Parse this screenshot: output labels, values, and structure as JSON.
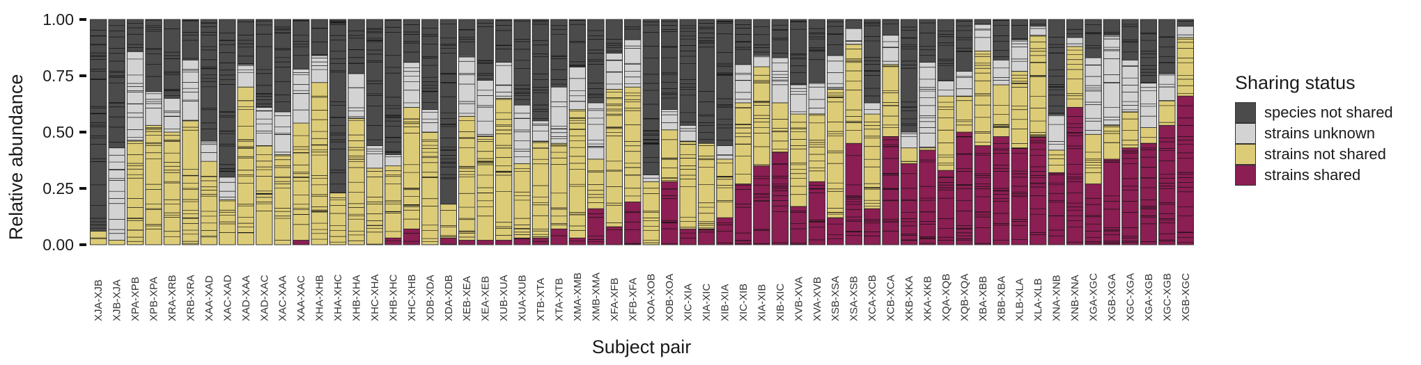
{
  "chart_data": {
    "type": "bar",
    "stacked": true,
    "xlabel": "Subject pair",
    "ylabel": "Relative abundance",
    "ylim": [
      0,
      1
    ],
    "yticks": [
      "0.00",
      "0.25",
      "0.50",
      "0.75",
      "1.00"
    ],
    "categories": [
      "XJA-XJB",
      "XJB-XJA",
      "XPA-XPB",
      "XPB-XPA",
      "XRA-XRB",
      "XRB-XRA",
      "XAA-XAD",
      "XAC-XAD",
      "XAD-XAA",
      "XAD-XAC",
      "XAC-XAA",
      "XAA-XAC",
      "XHA-XHB",
      "XHA-XHC",
      "XHB-XHA",
      "XHC-XHA",
      "XHB-XHC",
      "XHC-XHB",
      "XDB-XDA",
      "XDA-XDB",
      "XEB-XEA",
      "XEA-XEB",
      "XUB-XUA",
      "XUA-XUB",
      "XTB-XTA",
      "XTA-XTB",
      "XMA-XMB",
      "XMB-XMA",
      "XFA-XFB",
      "XFB-XFA",
      "XOA-XOB",
      "XOB-XOA",
      "XIC-XIA",
      "XIA-XIC",
      "XIB-XIA",
      "XIC-XIB",
      "XIA-XIB",
      "XIB-XIC",
      "XVB-XVA",
      "XVA-XVB",
      "XSB-XSA",
      "XSA-XSB",
      "XCA-XCB",
      "XCB-XCA",
      "XKB-XKA",
      "XKA-XKB",
      "XQA-XQB",
      "XQB-XQA",
      "XBA-XBB",
      "XBB-XBA",
      "XLB-XLA",
      "XLA-XLB",
      "XNA-XNB",
      "XNB-XNA",
      "XGA-XGC",
      "XGB-XGA",
      "XGC-XGA",
      "XGA-XGB",
      "XGC-XGB",
      "XGB-XGC"
    ],
    "series": [
      {
        "name": "strains shared",
        "color": "#8b1e52",
        "values": [
          0,
          0,
          0,
          0,
          0,
          0,
          0,
          0,
          0,
          0,
          0,
          0.02,
          0,
          0,
          0,
          0,
          0.03,
          0.07,
          0,
          0.03,
          0.02,
          0.02,
          0.02,
          0.03,
          0.03,
          0.07,
          0.03,
          0.16,
          0.08,
          0.19,
          0,
          0.28,
          0.07,
          0.07,
          0.12,
          0.27,
          0.35,
          0.41,
          0.17,
          0.28,
          0.12,
          0.45,
          0.16,
          0.48,
          0.36,
          0.42,
          0.33,
          0.5,
          0.44,
          0.48,
          0.43,
          0.48,
          0.32,
          0.61,
          0.27,
          0.38,
          0.43,
          0.45,
          0.53,
          0.66
        ]
      },
      {
        "name": "strains not shared",
        "color": "#ddcc77",
        "values": [
          0.06,
          0.02,
          0.46,
          0.53,
          0.5,
          0.55,
          0.37,
          0.2,
          0.7,
          0.44,
          0.4,
          0.52,
          0.72,
          0.23,
          0.56,
          0.34,
          0.32,
          0.54,
          0.5,
          0.15,
          0.55,
          0.46,
          0.63,
          0.33,
          0.43,
          0.38,
          0.57,
          0.22,
          0.61,
          0.51,
          0.28,
          0.23,
          0.39,
          0.38,
          0.26,
          0.36,
          0.44,
          0.22,
          0.41,
          0.3,
          0.57,
          0.44,
          0.42,
          0.32,
          0.07,
          0.01,
          0.33,
          0.16,
          0.42,
          0.23,
          0.34,
          0.45,
          0.1,
          0.27,
          0.22,
          0.15,
          0.16,
          0.07,
          0.11,
          0.26
        ]
      },
      {
        "name": "strains unknown",
        "color": "#d3d3d3",
        "values": [
          0,
          0.41,
          0.4,
          0.15,
          0.15,
          0.27,
          0.09,
          0.1,
          0.1,
          0.17,
          0.19,
          0.24,
          0.12,
          0,
          0.2,
          0.1,
          0.05,
          0.2,
          0.1,
          0,
          0.27,
          0.25,
          0.16,
          0.26,
          0.09,
          0.25,
          0.19,
          0.25,
          0.16,
          0.21,
          0.03,
          0.09,
          0.07,
          0,
          0.06,
          0.17,
          0.05,
          0.2,
          0.13,
          0.14,
          0.15,
          0.07,
          0.05,
          0.13,
          0.07,
          0.38,
          0.07,
          0.11,
          0.12,
          0.11,
          0.14,
          0.04,
          0.16,
          0.04,
          0.34,
          0.4,
          0.23,
          0.2,
          0.12,
          0.05
        ]
      },
      {
        "name": "species not shared",
        "color": "#4b4b4b",
        "values": [
          0.94,
          0.57,
          0.14,
          0.32,
          0.35,
          0.18,
          0.54,
          0.7,
          0.2,
          0.39,
          0.41,
          0.22,
          0.16,
          0.77,
          0.24,
          0.56,
          0.6,
          0.19,
          0.4,
          0.82,
          0.16,
          0.27,
          0.19,
          0.38,
          0.45,
          0.3,
          0.21,
          0.37,
          0.15,
          0.09,
          0.69,
          0.4,
          0.47,
          0.55,
          0.56,
          0.2,
          0.16,
          0.17,
          0.29,
          0.28,
          0.16,
          0.04,
          0.37,
          0.07,
          0.5,
          0.19,
          0.27,
          0.23,
          0.02,
          0.18,
          0.09,
          0.03,
          0.42,
          0.08,
          0.17,
          0.07,
          0.18,
          0.28,
          0.24,
          0.03
        ]
      }
    ],
    "legend": {
      "title": "Sharing status",
      "placement": "right",
      "items": [
        "species not shared",
        "strains unknown",
        "strains not shared",
        "strains shared"
      ]
    }
  }
}
